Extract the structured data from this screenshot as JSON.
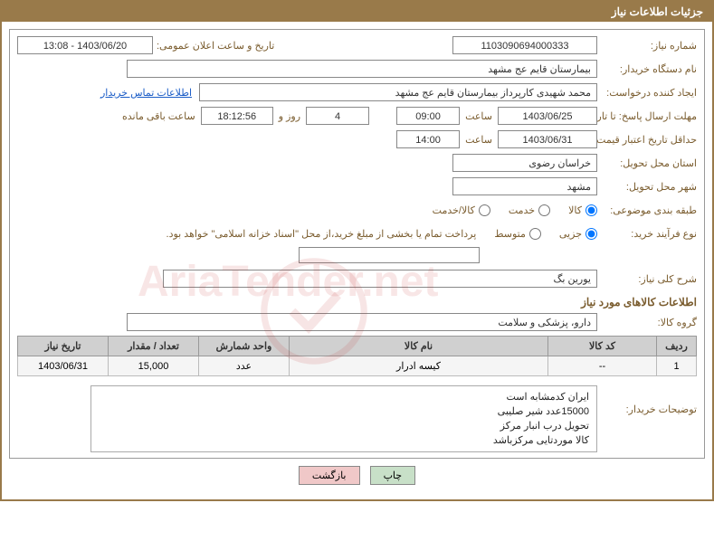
{
  "header": {
    "title": "جزئیات اطلاعات نیاز"
  },
  "fields": {
    "need_number_label": "شماره نیاز:",
    "need_number": "1103090694000333",
    "announce_datetime_label": "تاریخ و ساعت اعلان عمومی:",
    "announce_datetime": "1403/06/20 - 13:08",
    "buyer_org_label": "نام دستگاه خریدار:",
    "buyer_org": "بیمارستان قایم  عج  مشهد",
    "requester_label": "ایجاد کننده درخواست:",
    "requester": "محمد شهیدی کارپرداز بیمارستان قایم  عج  مشهد",
    "contact_link": "اطلاعات تماس خریدار",
    "response_deadline_label": "مهلت ارسال پاسخ: تا تاریخ:",
    "response_date": "1403/06/25",
    "time_label": "ساعت",
    "response_time": "09:00",
    "remaining_days": "4",
    "days_and_label": "روز و",
    "remaining_time": "18:12:56",
    "remaining_suffix": "ساعت باقی مانده",
    "price_validity_label": "حداقل تاریخ اعتبار قیمت: تا تاریخ:",
    "price_validity_date": "1403/06/31",
    "price_validity_time": "14:00",
    "delivery_province_label": "استان محل تحویل:",
    "delivery_province": "خراسان رضوی",
    "delivery_city_label": "شهر محل تحویل:",
    "delivery_city": "مشهد",
    "category_label": "طبقه بندی موضوعی:",
    "process_type_label": "نوع فرآیند خرید:",
    "payment_note": "پرداخت تمام یا بخشی از مبلغ خرید،از محل \"اسناد خزانه اسلامی\" خواهد بود.",
    "brief_label": "شرح کلی نیاز:",
    "brief_value": "یورین بگ",
    "section_goods_title": "اطلاعات کالاهای مورد نیاز",
    "goods_group_label": "گروه کالا:",
    "goods_group": "دارو، پزشکی و سلامت",
    "buyer_notes_label": "توضیحات خریدار:"
  },
  "category_options": {
    "goods": "کالا",
    "service": "خدمت",
    "goods_service": "کالا/خدمت",
    "selected": "goods"
  },
  "process_options": {
    "partial": "جزیی",
    "medium": "متوسط",
    "selected": "partial"
  },
  "table": {
    "headers": {
      "row": "ردیف",
      "code": "کد کالا",
      "name": "نام کالا",
      "unit": "واحد شمارش",
      "qty": "تعداد / مقدار",
      "date": "تاریخ نیاز"
    },
    "rows": [
      {
        "row": "1",
        "code": "--",
        "name": "کیسه ادرار",
        "unit": "عدد",
        "qty": "15,000",
        "date": "1403/06/31"
      }
    ]
  },
  "buyer_notes": "ایران  کدمشابه است\n15000عدد شیر صلیبی\nتحویل درب انبار مرکز\nکالا موردتایی مرکزباشد",
  "buttons": {
    "print": "چاپ",
    "back": "بازگشت"
  },
  "watermark": "AriaTender.net",
  "colors": {
    "header_bg": "#997a4a",
    "label_color": "#7a5c2e",
    "link_color": "#1a5cc7",
    "th_bg": "#d0d0d0",
    "td_bg": "#f5f5f5",
    "btn_print_bg": "#c8e0c8",
    "btn_back_bg": "#f0c8c8"
  }
}
